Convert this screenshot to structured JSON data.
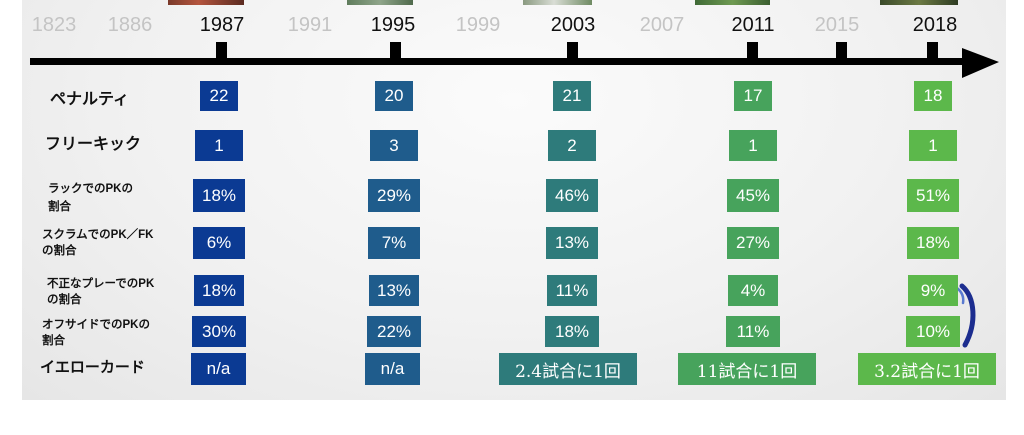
{
  "colors": {
    "year_active": "#111111",
    "year_muted": "#c4c4c4",
    "timeline": "#000000"
  },
  "chart_data": {
    "type": "table",
    "categories": [
      "ペナルティ",
      "フリーキック",
      "ラックでのPKの\n割合",
      "スクラムでのPK／FK\nの割合",
      "不正なプレーでのPK\nの割合",
      "オフサイドでのPKの\n割合",
      "イエローカード"
    ],
    "timeline": [
      {
        "year": "1823",
        "highlight": false,
        "tick": false
      },
      {
        "year": "1886",
        "highlight": false,
        "tick": false
      },
      {
        "year": "1987",
        "highlight": true,
        "tick": true,
        "color": "#0b3a93",
        "values": [
          "22",
          "1",
          "18%",
          "6%",
          "18%",
          "30%",
          "n/a"
        ]
      },
      {
        "year": "1991",
        "highlight": false,
        "tick": false
      },
      {
        "year": "1995",
        "highlight": true,
        "tick": true,
        "color": "#1f5c8c",
        "values": [
          "20",
          "3",
          "29%",
          "7%",
          "13%",
          "22%",
          "n/a"
        ]
      },
      {
        "year": "1999",
        "highlight": false,
        "tick": false
      },
      {
        "year": "2003",
        "highlight": true,
        "tick": true,
        "color": "#2e7b7b",
        "values": [
          "21",
          "2",
          "46%",
          "13%",
          "11%",
          "18%",
          "2.4試合に1回"
        ]
      },
      {
        "year": "2007",
        "highlight": false,
        "tick": false
      },
      {
        "year": "2011",
        "highlight": true,
        "tick": true,
        "color": "#47a35c",
        "values": [
          "17",
          "1",
          "45%",
          "27%",
          "4%",
          "11%",
          "11試合に1回"
        ]
      },
      {
        "year": "2015",
        "highlight": false,
        "tick": true
      },
      {
        "year": "2018",
        "highlight": true,
        "tick": true,
        "color": "#5cb84b",
        "values": [
          "18",
          "1",
          "51%",
          "18%",
          "9%",
          "10%",
          "3.2試合に1回"
        ]
      }
    ]
  }
}
